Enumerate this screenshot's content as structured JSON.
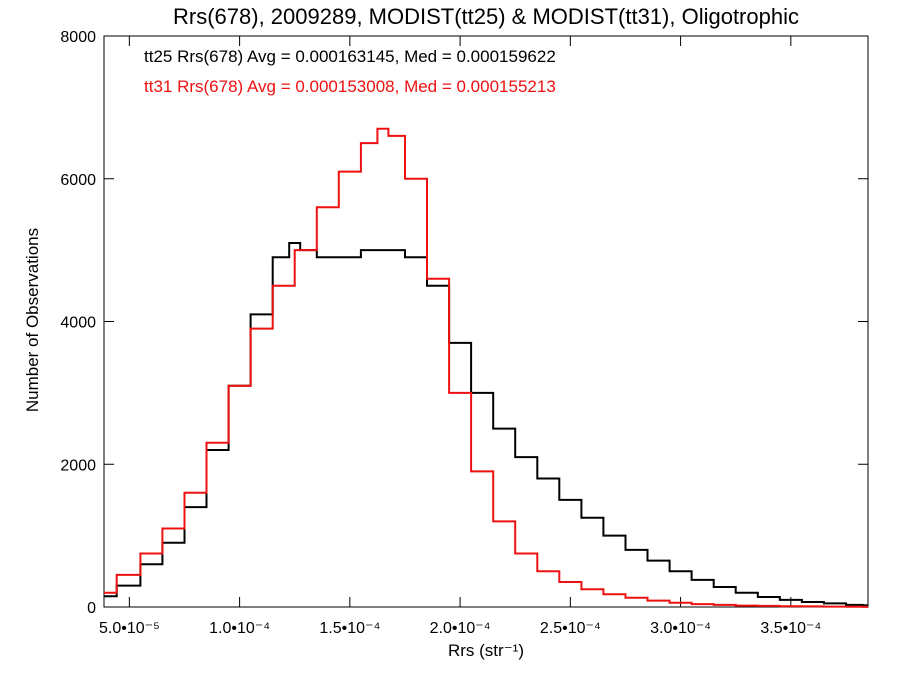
{
  "chart_data": {
    "type": "line",
    "title": "Rrs(678), 2009289, MODIST(tt25) & MODIST(tt31), Oligotrophic",
    "xlabel": "Rrs (str⁻¹)",
    "ylabel": "Number of Observations",
    "xlim": [
      3.85e-05,
      0.000385
    ],
    "ylim": [
      0,
      8000
    ],
    "x_ticks": [
      5e-05,
      0.0001,
      0.00015,
      0.0002,
      0.00025,
      0.0003,
      0.00035
    ],
    "x_tick_labels": [
      "5.0•10⁻⁵",
      "1.0•10⁻⁴",
      "1.5•10⁻⁴",
      "2.0•10⁻⁴",
      "2.5•10⁻⁴",
      "3.0•10⁻⁴",
      "3.5•10⁻⁴"
    ],
    "y_ticks": [
      0,
      2000,
      4000,
      6000,
      8000
    ],
    "y_tick_labels": [
      "0",
      "2000",
      "4000",
      "6000",
      "8000"
    ],
    "grid": false,
    "legend_position": "top-left",
    "annotations": [
      {
        "text": "tt25 Rrs(678) Avg = 0.000163145, Med = 0.000159622",
        "color": "#000000"
      },
      {
        "text": "tt31 Rrs(678) Avg = 0.000153008, Med = 0.000155213",
        "color": "#ee1111"
      }
    ],
    "series": [
      {
        "color": "#000000",
        "x": [
          3.85e-05,
          5e-05,
          6e-05,
          7e-05,
          8e-05,
          9e-05,
          0.0001,
          0.00011,
          0.00012,
          0.000125,
          0.00013,
          0.00014,
          0.00015,
          0.00016,
          0.00017,
          0.00018,
          0.00019,
          0.0002,
          0.00021,
          0.00022,
          0.00023,
          0.00024,
          0.00025,
          0.00026,
          0.00027,
          0.00028,
          0.00029,
          0.0003,
          0.00031,
          0.00032,
          0.00033,
          0.00034,
          0.00035,
          0.00036,
          0.00037,
          0.00038,
          0.000385
        ],
        "y": [
          150,
          300,
          600,
          900,
          1400,
          2200,
          3100,
          4100,
          4900,
          5100,
          5000,
          4900,
          4900,
          5000,
          5000,
          4900,
          4500,
          3700,
          3000,
          2500,
          2100,
          1800,
          1500,
          1250,
          1000,
          800,
          650,
          500,
          380,
          280,
          200,
          140,
          100,
          70,
          50,
          30,
          25
        ]
      },
      {
        "color": "#ee1111",
        "x": [
          3.85e-05,
          5e-05,
          6e-05,
          7e-05,
          8e-05,
          9e-05,
          0.0001,
          0.00011,
          0.00012,
          0.00013,
          0.00014,
          0.00015,
          0.00016,
          0.000165,
          0.00017,
          0.00018,
          0.00019,
          0.0002,
          0.00021,
          0.00022,
          0.00023,
          0.00024,
          0.00025,
          0.00026,
          0.00027,
          0.00028,
          0.00029,
          0.0003,
          0.00031,
          0.00032,
          0.00033,
          0.00034,
          0.00035,
          0.00036,
          0.00037,
          0.00038,
          0.000385
        ],
        "y": [
          200,
          450,
          750,
          1100,
          1600,
          2300,
          3100,
          3900,
          4500,
          5000,
          5600,
          6100,
          6500,
          6700,
          6600,
          6000,
          4600,
          3000,
          1900,
          1200,
          750,
          500,
          350,
          250,
          180,
          130,
          90,
          60,
          40,
          30,
          20,
          15,
          10,
          8,
          5,
          3,
          2
        ]
      }
    ]
  }
}
